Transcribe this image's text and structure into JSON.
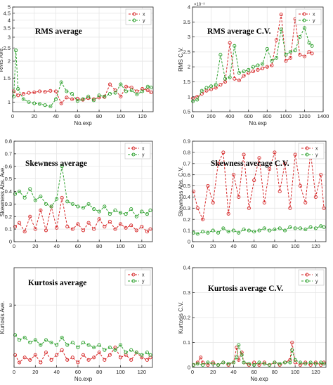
{
  "colors": {
    "x_series": "#d62728",
    "y_series": "#2ca02c",
    "grid": "#e6e6e6",
    "axis": "#262626"
  },
  "chart_data": [
    {
      "type": "line",
      "title": "RMS average",
      "xlabel": "No.exp",
      "ylabel": "RMS Ave.",
      "xlim": [
        0,
        130
      ],
      "ylim": [
        0.85,
        5
      ],
      "yscale": "log",
      "xticks": [
        0,
        20,
        40,
        60,
        80,
        100,
        120
      ],
      "yticks": [
        1,
        1.5,
        2,
        2.5,
        3,
        3.5,
        4,
        4.5,
        5
      ],
      "ytick_labels": [
        "1",
        "1.5",
        "2",
        "2.5",
        "3",
        "3.5",
        "4",
        "4.5",
        "5"
      ],
      "grid": true,
      "legend": "top-right",
      "series": [
        {
          "name": "x",
          "x": [
            1,
            5,
            10,
            15,
            20,
            25,
            30,
            35,
            40,
            45,
            50,
            55,
            60,
            65,
            70,
            75,
            80,
            85,
            90,
            95,
            100,
            105,
            110,
            115,
            120,
            125,
            128
          ],
          "values": [
            1.2,
            1.12,
            1.15,
            1.17,
            1.18,
            1.2,
            1.19,
            1.21,
            1.2,
            0.98,
            1.08,
            1.05,
            1.06,
            1.04,
            1.07,
            1.05,
            1.08,
            1.09,
            1.35,
            1.22,
            1.1,
            1.3,
            1.28,
            1.2,
            1.25,
            1.22,
            1.18
          ]
        },
        {
          "name": "y",
          "x": [
            1,
            3,
            5,
            10,
            15,
            20,
            25,
            30,
            35,
            40,
            45,
            50,
            55,
            60,
            65,
            70,
            75,
            80,
            85,
            90,
            95,
            100,
            105,
            110,
            115,
            120,
            125,
            128
          ],
          "values": [
            1.1,
            2.4,
            1.25,
            1.05,
            1.0,
            0.98,
            0.97,
            0.95,
            0.93,
            1.05,
            1.4,
            1.2,
            1.15,
            1.02,
            1.05,
            1.1,
            1.03,
            1.12,
            1.1,
            1.15,
            1.17,
            1.35,
            1.2,
            1.22,
            1.14,
            1.2,
            1.3,
            1.28
          ]
        }
      ]
    },
    {
      "type": "line",
      "title": "RMS average C.V.",
      "xlabel": "No.exp",
      "ylabel": "RMS C.V.",
      "xlim": [
        0,
        1400
      ],
      "ylim": [
        0.5,
        4
      ],
      "exponent_label": "×10⁻³",
      "xticks": [
        0,
        200,
        400,
        600,
        800,
        1000,
        1200,
        1400
      ],
      "yticks": [
        0.5,
        1,
        1.5,
        2,
        2.5,
        3,
        3.5,
        4
      ],
      "ytick_labels": [
        "0.5",
        "1",
        "1.5",
        "2",
        "2.5",
        "3",
        "3.5",
        "4"
      ],
      "grid": true,
      "legend": "top-right",
      "series": [
        {
          "name": "x",
          "x": [
            5,
            50,
            100,
            150,
            200,
            250,
            300,
            350,
            400,
            450,
            500,
            550,
            600,
            650,
            700,
            750,
            800,
            850,
            900,
            950,
            1000,
            1050,
            1100,
            1150,
            1200,
            1250,
            1280
          ],
          "values": [
            0.95,
            1.0,
            1.1,
            1.2,
            1.25,
            1.3,
            1.4,
            1.5,
            2.8,
            1.6,
            1.55,
            1.7,
            1.8,
            1.85,
            1.9,
            1.95,
            2.0,
            2.05,
            2.9,
            3.75,
            2.2,
            2.3,
            3.6,
            2.4,
            2.35,
            2.5,
            2.45
          ]
        },
        {
          "name": "y",
          "x": [
            5,
            50,
            100,
            150,
            200,
            250,
            300,
            350,
            400,
            450,
            500,
            550,
            600,
            650,
            700,
            750,
            800,
            850,
            900,
            950,
            1000,
            1050,
            1100,
            1150,
            1200,
            1250,
            1280
          ],
          "values": [
            0.85,
            0.9,
            1.2,
            1.3,
            1.35,
            1.4,
            2.4,
            1.6,
            1.65,
            2.7,
            1.8,
            1.85,
            1.9,
            2.0,
            2.05,
            2.1,
            2.6,
            2.2,
            2.3,
            3.25,
            2.4,
            2.5,
            2.55,
            3.0,
            3.3,
            2.8,
            2.7
          ]
        }
      ]
    },
    {
      "type": "line",
      "title": "Skewness average",
      "xlabel": "",
      "ylabel": "Skewness Abs. Ave.",
      "xlim": [
        0,
        130
      ],
      "ylim": [
        0,
        0.8
      ],
      "xticks": [
        0,
        20,
        40,
        60,
        80,
        100,
        120
      ],
      "yticks": [
        0,
        0.1,
        0.2,
        0.3,
        0.4,
        0.5,
        0.6,
        0.7,
        0.8
      ],
      "ytick_labels": [
        "0",
        "0.1",
        "0.2",
        "0.3",
        "0.4",
        "0.5",
        "0.6",
        "0.7",
        "0.8"
      ],
      "grid": true,
      "legend": "top-right",
      "series": [
        {
          "name": "x",
          "x": [
            1,
            5,
            10,
            15,
            20,
            25,
            30,
            35,
            40,
            45,
            50,
            55,
            60,
            65,
            70,
            75,
            80,
            85,
            90,
            95,
            100,
            105,
            110,
            115,
            120,
            125,
            128
          ],
          "values": [
            0.12,
            0.15,
            0.08,
            0.2,
            0.1,
            0.25,
            0.09,
            0.28,
            0.11,
            0.35,
            0.12,
            0.1,
            0.14,
            0.09,
            0.15,
            0.1,
            0.18,
            0.12,
            0.16,
            0.1,
            0.14,
            0.11,
            0.13,
            0.09,
            0.12,
            0.08,
            0.1
          ]
        },
        {
          "name": "y",
          "x": [
            1,
            5,
            10,
            15,
            20,
            25,
            30,
            35,
            40,
            45,
            50,
            55,
            60,
            65,
            70,
            75,
            80,
            85,
            90,
            95,
            100,
            105,
            110,
            115,
            120,
            125,
            128
          ],
          "values": [
            0.38,
            0.4,
            0.35,
            0.42,
            0.33,
            0.36,
            0.3,
            0.28,
            0.34,
            0.6,
            0.32,
            0.3,
            0.28,
            0.27,
            0.3,
            0.26,
            0.24,
            0.28,
            0.22,
            0.25,
            0.23,
            0.22,
            0.26,
            0.2,
            0.24,
            0.22,
            0.25
          ]
        }
      ]
    },
    {
      "type": "line",
      "title": "Skewness average C.V.",
      "xlabel": "",
      "ylabel": "Skewness Abs. C.V.",
      "xlim": [
        0,
        130
      ],
      "ylim": [
        0,
        0.9
      ],
      "xticks": [
        0,
        20,
        40,
        60,
        80,
        100,
        120
      ],
      "yticks": [
        0,
        0.1,
        0.2,
        0.3,
        0.4,
        0.5,
        0.6,
        0.7,
        0.8,
        0.9
      ],
      "ytick_labels": [
        "0",
        "0.1",
        "0.2",
        "0.3",
        "0.4",
        "0.5",
        "0.6",
        "0.7",
        "0.8",
        "0.9"
      ],
      "grid": true,
      "legend": "top-right",
      "series": [
        {
          "name": "x",
          "x": [
            1,
            5,
            10,
            15,
            20,
            25,
            30,
            35,
            40,
            45,
            50,
            55,
            60,
            65,
            70,
            75,
            80,
            85,
            90,
            95,
            100,
            105,
            110,
            115,
            120,
            125,
            128
          ],
          "values": [
            0.45,
            0.3,
            0.2,
            0.5,
            0.35,
            0.7,
            0.8,
            0.25,
            0.6,
            0.4,
            0.78,
            0.3,
            0.55,
            0.75,
            0.35,
            0.65,
            0.8,
            0.45,
            0.7,
            0.3,
            0.78,
            0.5,
            0.35,
            0.8,
            0.4,
            0.6,
            0.3
          ]
        },
        {
          "name": "y",
          "x": [
            1,
            5,
            10,
            15,
            20,
            25,
            30,
            35,
            40,
            45,
            50,
            55,
            60,
            65,
            70,
            75,
            80,
            85,
            90,
            95,
            100,
            105,
            110,
            115,
            120,
            125,
            128
          ],
          "values": [
            0.08,
            0.07,
            0.09,
            0.08,
            0.1,
            0.08,
            0.12,
            0.09,
            0.1,
            0.08,
            0.11,
            0.1,
            0.09,
            0.1,
            0.12,
            0.1,
            0.11,
            0.12,
            0.1,
            0.13,
            0.12,
            0.12,
            0.11,
            0.13,
            0.12,
            0.14,
            0.13
          ]
        }
      ]
    },
    {
      "type": "line",
      "title": "Kurtosis average",
      "xlabel": "No.exp",
      "ylabel": "Kurtosis Ave.",
      "xlim": [
        0,
        130
      ],
      "ylim": [
        2.75,
        3.15
      ],
      "xticks": [
        0,
        20,
        40,
        60,
        80,
        100,
        120
      ],
      "yticks": [
        3
      ],
      "ytick_labels": [
        "3"
      ],
      "grid": true,
      "legend": "top-right",
      "series": [
        {
          "name": "x",
          "x": [
            1,
            5,
            10,
            15,
            20,
            25,
            30,
            35,
            40,
            45,
            50,
            55,
            60,
            65,
            70,
            75,
            80,
            85,
            90,
            95,
            100,
            105,
            110,
            115,
            120,
            125,
            128
          ],
          "values": [
            2.8,
            2.77,
            2.79,
            2.78,
            2.8,
            2.77,
            2.81,
            2.78,
            2.8,
            2.82,
            2.78,
            2.79,
            2.77,
            2.8,
            2.78,
            2.79,
            2.81,
            2.78,
            2.8,
            2.83,
            2.79,
            2.8,
            2.78,
            2.81,
            2.79,
            2.78,
            2.79
          ]
        },
        {
          "name": "y",
          "x": [
            1,
            5,
            10,
            15,
            20,
            25,
            30,
            35,
            40,
            45,
            50,
            55,
            60,
            65,
            70,
            75,
            80,
            85,
            90,
            95,
            100,
            105,
            110,
            115,
            120,
            125,
            128
          ],
          "values": [
            2.88,
            2.86,
            2.87,
            2.85,
            2.86,
            2.84,
            2.86,
            2.85,
            2.84,
            2.87,
            2.84,
            2.85,
            2.83,
            2.85,
            2.84,
            2.83,
            2.84,
            2.82,
            2.83,
            2.82,
            2.84,
            2.81,
            2.82,
            2.81,
            2.8,
            2.81,
            2.8
          ]
        }
      ]
    },
    {
      "type": "line",
      "title": "Kurtosis average C.V.",
      "xlabel": "No.exp",
      "ylabel": "Kurtosis C.V.",
      "xlim": [
        0,
        130
      ],
      "ylim": [
        0,
        0.4
      ],
      "xticks": [
        0,
        20,
        40,
        60,
        80,
        100,
        120
      ],
      "yticks": [
        0,
        0.1,
        0.2,
        0.3,
        0.4
      ],
      "ytick_labels": [
        "0",
        "0.1",
        "0.2",
        "0.3",
        "0.4"
      ],
      "grid": true,
      "legend": "top-right",
      "series": [
        {
          "name": "x",
          "x": [
            1,
            5,
            8,
            10,
            15,
            20,
            25,
            30,
            35,
            40,
            43,
            45,
            48,
            50,
            55,
            60,
            65,
            70,
            75,
            80,
            85,
            90,
            95,
            97,
            100,
            105,
            110,
            115,
            120,
            125,
            128
          ],
          "values": [
            0.01,
            0.02,
            0.04,
            0.02,
            0.01,
            0.02,
            0.01,
            0.02,
            0.01,
            0.02,
            0.08,
            0.03,
            0.06,
            0.02,
            0.01,
            0.02,
            0.01,
            0.02,
            0.01,
            0.02,
            0.01,
            0.02,
            0.03,
            0.1,
            0.02,
            0.01,
            0.02,
            0.01,
            0.02,
            0.01,
            0.02
          ]
        },
        {
          "name": "y",
          "x": [
            1,
            5,
            10,
            15,
            20,
            25,
            30,
            35,
            40,
            43,
            45,
            48,
            50,
            55,
            60,
            65,
            70,
            75,
            80,
            85,
            90,
            95,
            97,
            100,
            105,
            110,
            115,
            120,
            125,
            128
          ],
          "values": [
            0.01,
            0.015,
            0.01,
            0.02,
            0.015,
            0.01,
            0.02,
            0.015,
            0.02,
            0.04,
            0.09,
            0.05,
            0.02,
            0.015,
            0.01,
            0.02,
            0.015,
            0.01,
            0.02,
            0.015,
            0.02,
            0.02,
            0.07,
            0.03,
            0.02,
            0.015,
            0.02,
            0.015,
            0.02,
            0.015
          ]
        }
      ]
    }
  ]
}
